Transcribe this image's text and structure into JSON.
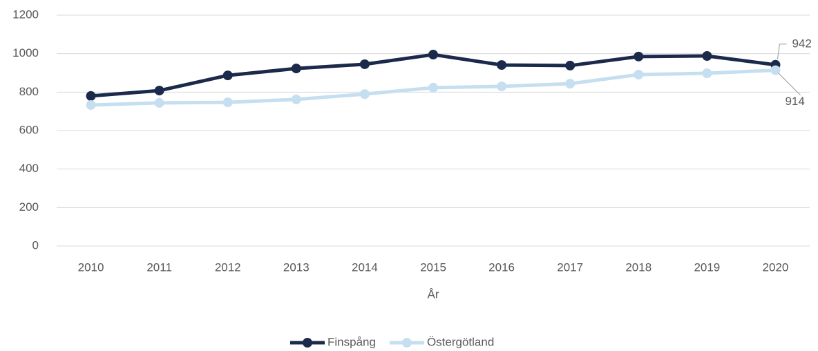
{
  "chart_data": {
    "type": "line",
    "x_label": "År",
    "categories": [
      "2010",
      "2011",
      "2012",
      "2013",
      "2014",
      "2015",
      "2016",
      "2017",
      "2018",
      "2019",
      "2020"
    ],
    "series": [
      {
        "name": "Finspång",
        "color": "#1b2a4a",
        "data_labels": "last",
        "values": [
          780,
          808,
          887,
          923,
          945,
          995,
          941,
          938,
          985,
          988,
          942
        ]
      },
      {
        "name": "Östergötland",
        "color": "#c5dff0",
        "data_labels": "last",
        "values": [
          733,
          744,
          747,
          762,
          790,
          823,
          830,
          844,
          891,
          898,
          914
        ]
      }
    ],
    "ylim": [
      0,
      1200
    ],
    "yticks": [
      0,
      200,
      400,
      600,
      800,
      1000,
      1200
    ],
    "grid": true,
    "legend": "bottom"
  }
}
